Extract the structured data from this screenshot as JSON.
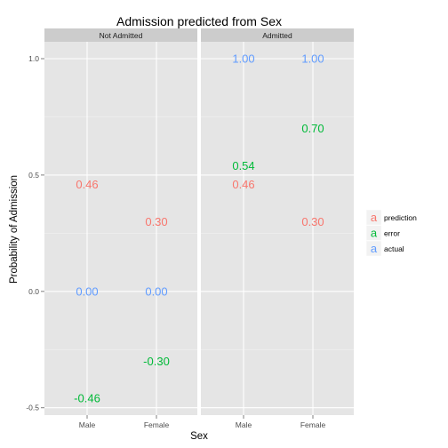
{
  "chart_data": {
    "type": "scatter",
    "title": "Admission predicted from Sex",
    "xlabel": "Sex",
    "ylabel": "Probability of Admission",
    "categories": [
      "Male",
      "Female"
    ],
    "facets": [
      "Not Admitted",
      "Admitted"
    ],
    "ylim": [
      -0.52,
      1.09
    ],
    "yticks": [
      -0.5,
      0.0,
      0.5,
      1.0
    ],
    "ytick_labels": [
      "-0.5",
      "0.0",
      "0.5",
      "1.0"
    ],
    "grid": true,
    "legend_position": "right",
    "series": [
      {
        "name": "prediction",
        "color": "#F8766D",
        "points": [
          {
            "facet": "Not Admitted",
            "x": "Male",
            "y": 0.46,
            "label": "0.46"
          },
          {
            "facet": "Not Admitted",
            "x": "Female",
            "y": 0.3,
            "label": "0.30"
          },
          {
            "facet": "Admitted",
            "x": "Male",
            "y": 0.46,
            "label": "0.46"
          },
          {
            "facet": "Admitted",
            "x": "Female",
            "y": 0.3,
            "label": "0.30"
          }
        ]
      },
      {
        "name": "error",
        "color": "#00BA38",
        "points": [
          {
            "facet": "Not Admitted",
            "x": "Male",
            "y": -0.46,
            "label": "-0.46"
          },
          {
            "facet": "Not Admitted",
            "x": "Female",
            "y": -0.3,
            "label": "-0.30"
          },
          {
            "facet": "Admitted",
            "x": "Male",
            "y": 0.54,
            "label": "0.54"
          },
          {
            "facet": "Admitted",
            "x": "Female",
            "y": 0.7,
            "label": "0.70"
          }
        ]
      },
      {
        "name": "actual",
        "color": "#619CFF",
        "points": [
          {
            "facet": "Not Admitted",
            "x": "Male",
            "y": 0.0,
            "label": "0.00"
          },
          {
            "facet": "Not Admitted",
            "x": "Female",
            "y": 0.0,
            "label": "0.00"
          },
          {
            "facet": "Admitted",
            "x": "Male",
            "y": 1.0,
            "label": "1.00"
          },
          {
            "facet": "Admitted",
            "x": "Female",
            "y": 1.0,
            "label": "1.00"
          }
        ]
      }
    ],
    "legend_glyph": "a"
  },
  "colors": {
    "panel_background": "#E5E5E5",
    "grid_major": "#FFFFFF",
    "strip_background": "#CCCCCC"
  }
}
